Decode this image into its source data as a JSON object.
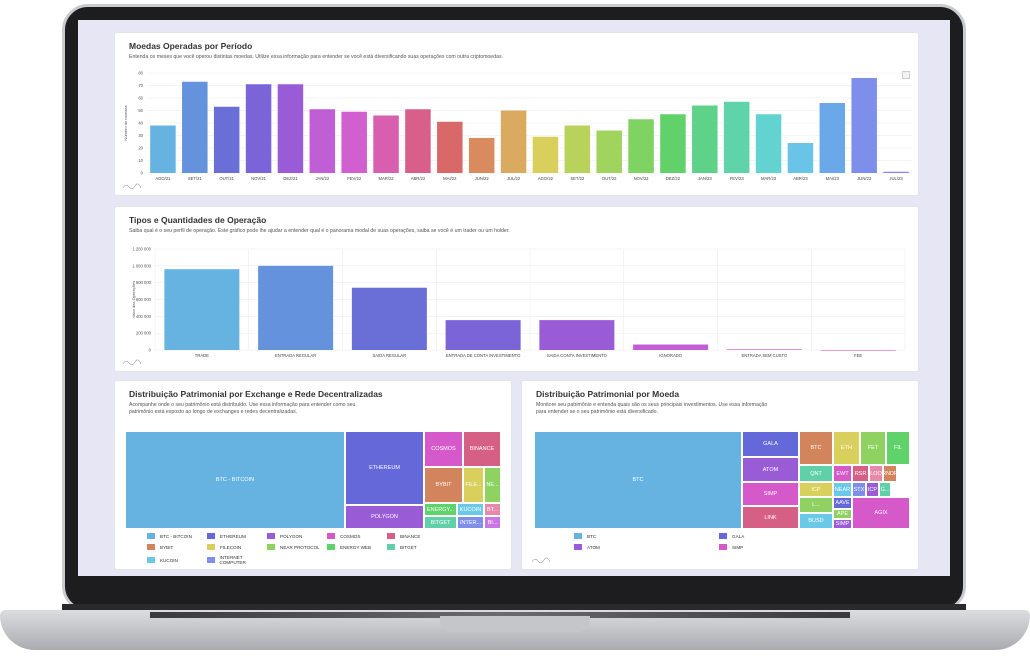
{
  "moedas": {
    "title": "Moedas Operadas por Período",
    "desc": "Entenda os meses que você operou distintas moedas. Utilize essa informação para entender se você está diversificando suas operações com outra criptomoedas."
  },
  "tipos": {
    "title": "Tipos e Quantidades de Operação",
    "desc": "Saiba qual é o seu perfil de operação. Este gráfico pode lhe ajudar a entender qual é o panorama modal de suas operações, saiba se você é um trader ou um holder."
  },
  "exchange": {
    "title": "Distribuição Patrimonial por Exchange e Rede Decentralizadas",
    "desc": "Acompanhe onde o seu patrimônio está distribuído. Use essa informação para entender como seu patrimônio está exposto ao longo de exchanges e redes decentralizadas.",
    "tiles": [
      {
        "label": "BTC - BITCOIN",
        "color": "#66b3e1"
      },
      {
        "label": "ETHEREUM",
        "color": "#6468d8"
      },
      {
        "label": "POLYGON",
        "color": "#9a5bd6"
      },
      {
        "label": "COSMOS",
        "color": "#d659c9"
      },
      {
        "label": "BINANCE",
        "color": "#d65f86"
      },
      {
        "label": "BYBIT",
        "color": "#d2845c"
      },
      {
        "label": "FILE...",
        "color": "#d9cf5c"
      },
      {
        "label": "NE...",
        "color": "#8fd262"
      },
      {
        "label": "ENERGY...",
        "color": "#5fd26a"
      },
      {
        "label": "KUCOIN",
        "color": "#6ac9e8"
      },
      {
        "label": "BT...",
        "color": "#e58aa8"
      },
      {
        "label": "BITGET",
        "color": "#5fd0a8"
      },
      {
        "label": "INTER...",
        "color": "#7d8fea"
      },
      {
        "label": "BI...",
        "color": "#c977e2"
      }
    ],
    "legend": [
      {
        "label": "BTC - BITCOIN",
        "color": "#66b3e1"
      },
      {
        "label": "ETHEREUM",
        "color": "#6468d8"
      },
      {
        "label": "POLYGON",
        "color": "#9a5bd6"
      },
      {
        "label": "COSMOS",
        "color": "#d659c9"
      },
      {
        "label": "BINANCE",
        "color": "#d65f86"
      },
      {
        "label": "BYBIT",
        "color": "#d2845c"
      },
      {
        "label": "FILECOIN",
        "color": "#d9cf5c"
      },
      {
        "label": "NEAR PROTOCOL",
        "color": "#8fd262"
      },
      {
        "label": "ENERGY WEB",
        "color": "#5fd26a"
      },
      {
        "label": "BITGET",
        "color": "#5fd0a8"
      },
      {
        "label": "KUCOIN",
        "color": "#6ac9e8"
      },
      {
        "label": "INTERNET COMPUTER",
        "color": "#7d8fea"
      }
    ]
  },
  "moeda": {
    "title": "Distribuição Patrimonial por Moeda",
    "desc": "Monitore seu patrimônio e entenda quais são os seus principais investimentos. Use essa informação para entender se o seu patrimônio está diversificado.",
    "tiles": [
      {
        "label": "BTC",
        "color": "#66b3e1"
      },
      {
        "label": "GALA",
        "color": "#6468d8"
      },
      {
        "label": "ATOM",
        "color": "#9a5bd6"
      },
      {
        "label": "SIMP",
        "color": "#d659c9"
      },
      {
        "label": "LINK",
        "color": "#d65f86"
      },
      {
        "label": "BTC",
        "color": "#d2845c"
      },
      {
        "label": "ETH",
        "color": "#d9cf5c"
      },
      {
        "label": "FET",
        "color": "#8fd262"
      },
      {
        "label": "FIL",
        "color": "#5fd26a"
      },
      {
        "label": "QNT",
        "color": "#5fd0a8"
      },
      {
        "label": "EWT",
        "color": "#d659c9"
      },
      {
        "label": "RSR",
        "color": "#d65f86"
      },
      {
        "label": "LOO",
        "color": "#e58aa8"
      },
      {
        "label": "RNDR",
        "color": "#d2845c"
      },
      {
        "label": "ICP",
        "color": "#d9cf5c"
      },
      {
        "label": "NEAR",
        "color": "#6ac9e8"
      },
      {
        "label": "STX",
        "color": "#7d8fea"
      },
      {
        "label": "ICP",
        "color": "#9a5bd6"
      },
      {
        "label": "G...",
        "color": "#5fd0a8"
      },
      {
        "label": "L...",
        "color": "#8fd262"
      },
      {
        "label": "AAVE",
        "color": "#6468d8"
      },
      {
        "label": "APE",
        "color": "#8fd262"
      },
      {
        "label": "BUSD",
        "color": "#6ac9e8"
      },
      {
        "label": "SIMP",
        "color": "#9a5bd6"
      },
      {
        "label": "AGIX",
        "color": "#d659c9"
      }
    ],
    "legend": [
      {
        "label": "BTC",
        "color": "#66b3e1"
      },
      {
        "label": "GALA",
        "color": "#6468d8"
      },
      {
        "label": "ATOM",
        "color": "#9a5bd6"
      },
      {
        "label": "SIMP",
        "color": "#d659c9"
      }
    ]
  },
  "chart_data": [
    {
      "type": "bar",
      "title": "Moedas Operadas por Período",
      "ylabel": "Número de moedas",
      "ylim": [
        0,
        80
      ],
      "yticks": [
        0,
        10,
        20,
        30,
        40,
        50,
        60,
        70,
        80
      ],
      "categories": [
        "AGO/21",
        "SET/21",
        "OUT/21",
        "NOV/21",
        "DEZ/21",
        "JAN/22",
        "FEV/22",
        "MAR/22",
        "ABR/22",
        "MAI/22",
        "JUN/22",
        "JUL/22",
        "AGO/22",
        "SET/22",
        "OUT/22",
        "NOV/22",
        "DEZ/22",
        "JAN/23",
        "FEV/23",
        "MAR/23",
        "ABR/23",
        "MAI/23",
        "JUN/23",
        "JUL/23"
      ],
      "values": [
        38,
        73,
        53,
        71,
        71,
        51,
        49,
        46,
        51,
        41,
        28,
        50,
        29,
        38,
        34,
        43,
        47,
        54,
        57,
        47,
        24,
        56,
        76,
        1
      ],
      "colors": [
        "#66b3e1",
        "#6492dd",
        "#6a6fd8",
        "#7a64d8",
        "#9a5bd6",
        "#c05ed6",
        "#d15fcf",
        "#d85fb0",
        "#d95f8b",
        "#d96868",
        "#d98a5f",
        "#d9aa5f",
        "#d9cf5c",
        "#b9d25c",
        "#a0d45f",
        "#7ed362",
        "#62d16a",
        "#5fd28a",
        "#5fd3aa",
        "#62d3d0",
        "#6ac4e8",
        "#6aa8ea",
        "#7d8fea",
        "#8f85ea"
      ]
    },
    {
      "type": "bar",
      "title": "Tipos e Quantidades de Operação",
      "ylabel": "Valor das Operações",
      "ylim": [
        0,
        1200000
      ],
      "yticks": [
        "0",
        "200 000",
        "400 000",
        "600 000",
        "800 000",
        "1 000 000",
        "1 200 000"
      ],
      "categories": [
        "TRADE",
        "ENTRADA REGULAR",
        "SAIDA REGULAR",
        "ENTRADA DE CONTA INVESTIMENTO",
        "SAIDA CONTA INVESTIMENTO",
        "IGNORADO",
        "ENTRADA SEM CUSTO",
        "FEE"
      ],
      "values": [
        960000,
        1000000,
        740000,
        355000,
        355000,
        65000,
        8000,
        0
      ],
      "colors": [
        "#66b3e1",
        "#6492dd",
        "#6a6fd8",
        "#7a64d8",
        "#9a5bd6",
        "#c05ed6",
        "#d15fcf",
        "#d85fb0"
      ]
    }
  ]
}
